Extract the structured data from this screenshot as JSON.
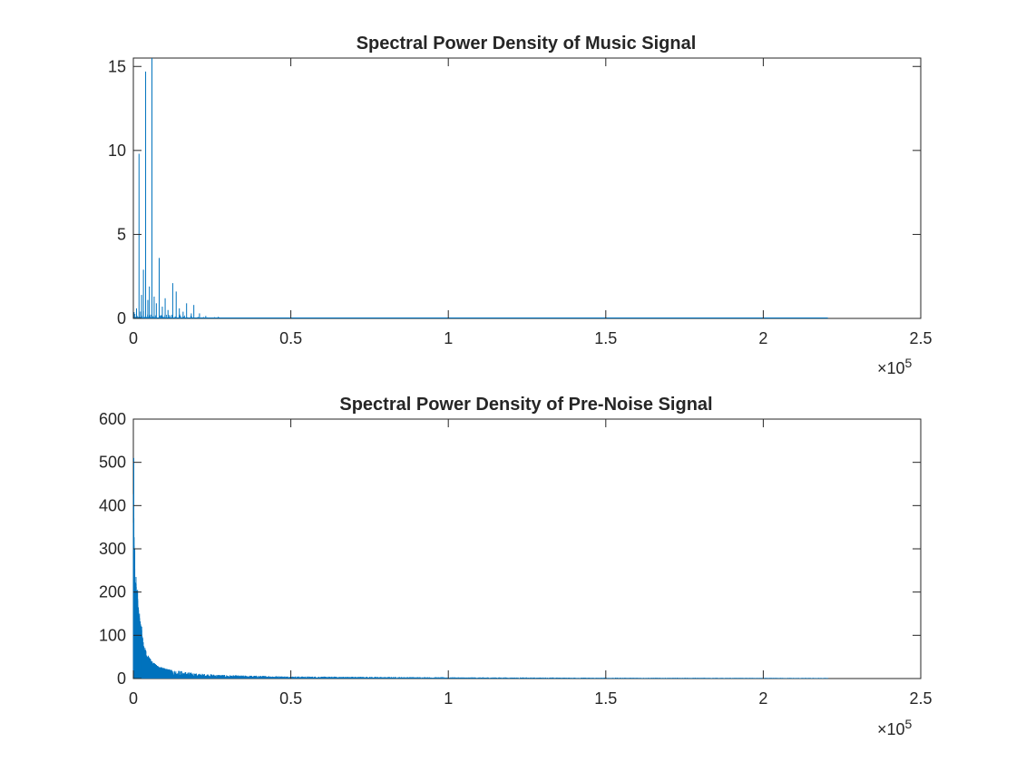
{
  "chart_data": [
    {
      "type": "line",
      "title": "Spectral Power Density of Music Signal",
      "xlabel": "",
      "ylabel": "",
      "xlim": [
        0,
        250000
      ],
      "ylim": [
        0,
        15.5
      ],
      "x_ticks": [
        0,
        50000,
        100000,
        150000,
        200000,
        250000
      ],
      "x_tick_labels": [
        "0",
        "0.5",
        "1",
        "1.5",
        "2",
        "2.5"
      ],
      "x_exponent_label": "×10",
      "x_exponent_power": "5",
      "y_ticks": [
        0,
        5,
        10,
        15
      ],
      "y_tick_labels": [
        "0",
        "5",
        "10",
        "15"
      ],
      "x_data_max": 220500,
      "color": "#0072BD",
      "grid": false,
      "peaks": [
        {
          "x": 1000,
          "y": 0.6
        },
        {
          "x": 1800,
          "y": 9.8
        },
        {
          "x": 2600,
          "y": 1.4
        },
        {
          "x": 3200,
          "y": 2.9
        },
        {
          "x": 3900,
          "y": 14.7
        },
        {
          "x": 4600,
          "y": 1.1
        },
        {
          "x": 5100,
          "y": 1.9
        },
        {
          "x": 5900,
          "y": 15.5
        },
        {
          "x": 6600,
          "y": 1.3
        },
        {
          "x": 7300,
          "y": 0.9
        },
        {
          "x": 8200,
          "y": 3.6
        },
        {
          "x": 9200,
          "y": 0.7
        },
        {
          "x": 10100,
          "y": 1.2
        },
        {
          "x": 11000,
          "y": 0.5
        },
        {
          "x": 12500,
          "y": 2.1
        },
        {
          "x": 13600,
          "y": 1.6
        },
        {
          "x": 14600,
          "y": 0.6
        },
        {
          "x": 15800,
          "y": 0.4
        },
        {
          "x": 16900,
          "y": 0.9
        },
        {
          "x": 18400,
          "y": 0.3
        },
        {
          "x": 19200,
          "y": 0.8
        },
        {
          "x": 21000,
          "y": 0.3
        },
        {
          "x": 23000,
          "y": 0.15
        },
        {
          "x": 27000,
          "y": 0.1
        }
      ]
    },
    {
      "type": "line",
      "title": "Spectral Power Density of Pre-Noise Signal",
      "xlabel": "",
      "ylabel": "",
      "xlim": [
        0,
        250000
      ],
      "ylim": [
        0,
        600
      ],
      "x_ticks": [
        0,
        50000,
        100000,
        150000,
        200000,
        250000
      ],
      "x_tick_labels": [
        "0",
        "0.5",
        "1",
        "1.5",
        "2",
        "2.5"
      ],
      "x_exponent_label": "×10",
      "x_exponent_power": "5",
      "y_ticks": [
        0,
        100,
        200,
        300,
        400,
        500,
        600
      ],
      "y_tick_labels": [
        "0",
        "100",
        "200",
        "300",
        "400",
        "500",
        "600"
      ],
      "x_data_max": 220500,
      "color": "#0072BD",
      "grid": false,
      "peaks": [
        {
          "x": 0,
          "y": 510
        },
        {
          "x": 300,
          "y": 300
        },
        {
          "x": 700,
          "y": 235
        },
        {
          "x": 1200,
          "y": 205
        },
        {
          "x": 1800,
          "y": 150
        },
        {
          "x": 2500,
          "y": 120
        },
        {
          "x": 3300,
          "y": 80
        },
        {
          "x": 4500,
          "y": 55
        },
        {
          "x": 6000,
          "y": 40
        },
        {
          "x": 8000,
          "y": 28
        },
        {
          "x": 11000,
          "y": 22
        },
        {
          "x": 15000,
          "y": 18
        },
        {
          "x": 20000,
          "y": 12
        },
        {
          "x": 30000,
          "y": 8
        },
        {
          "x": 50000,
          "y": 5
        },
        {
          "x": 100000,
          "y": 3
        },
        {
          "x": 150000,
          "y": 2
        },
        {
          "x": 220000,
          "y": 1.5
        }
      ]
    }
  ]
}
